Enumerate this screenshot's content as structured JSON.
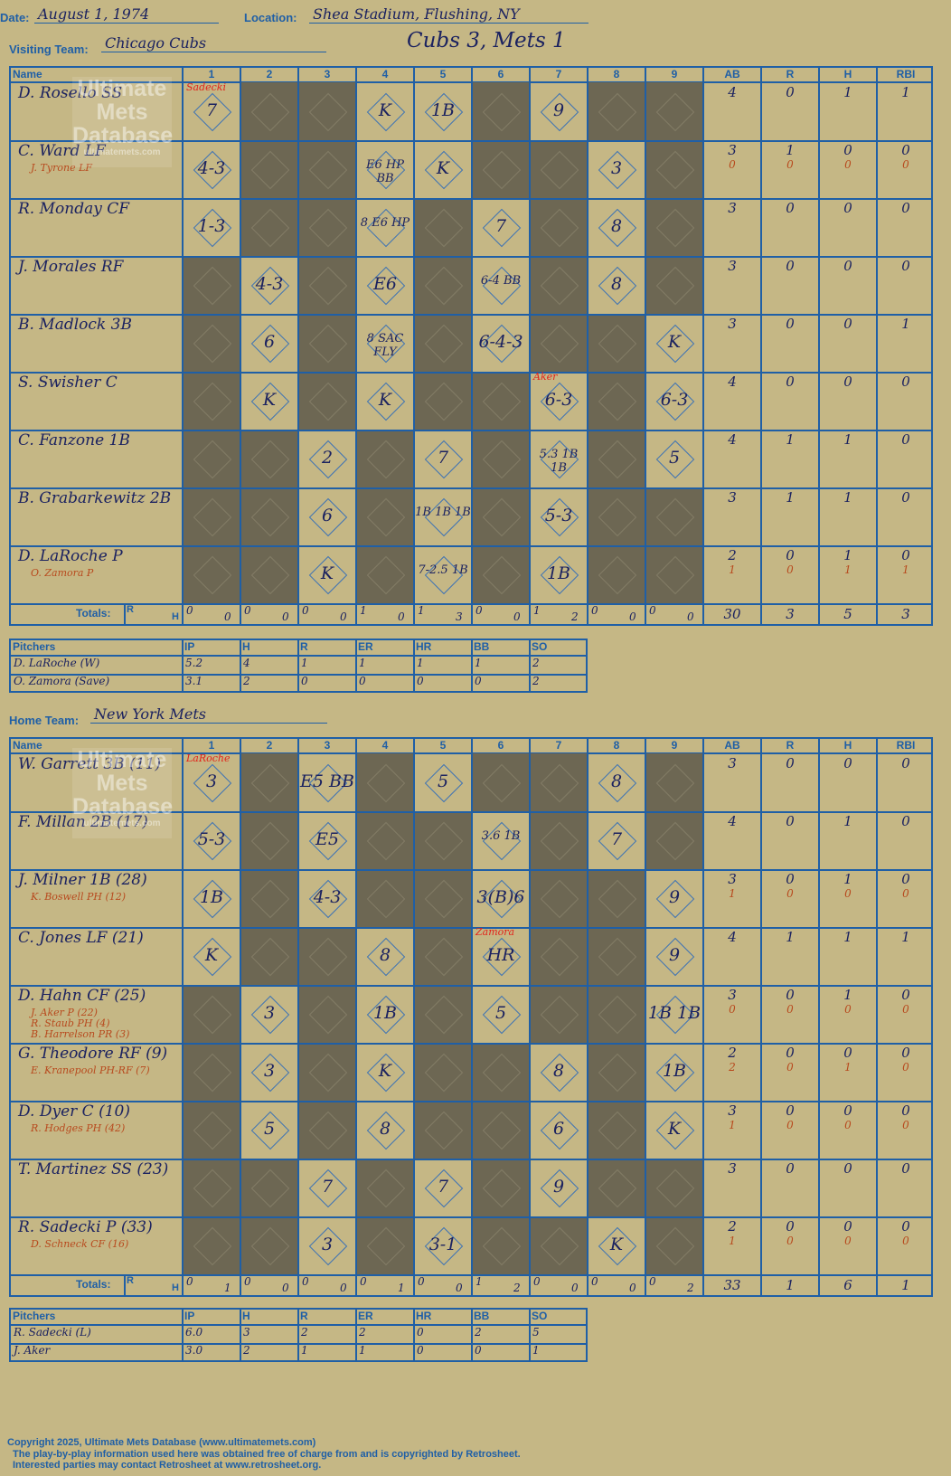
{
  "header": {
    "date_label": "Date:",
    "date": "August 1, 1974",
    "location_label": "Location:",
    "location": "Shea Stadium, Flushing, NY",
    "score_title": "Cubs 3, Mets 1"
  },
  "columns": {
    "name": "Name",
    "innings": [
      "1",
      "2",
      "3",
      "4",
      "5",
      "6",
      "7",
      "8",
      "9"
    ],
    "stats": [
      "AB",
      "R",
      "H",
      "RBI"
    ],
    "totals_label": "Totals:",
    "r_label": "R",
    "h_label": "H"
  },
  "watermark": {
    "line1": "Ultimate",
    "line2": "Mets",
    "line3": "Database",
    "url": "ultimatemets.com"
  },
  "visiting": {
    "team_label": "Visiting Team:",
    "team": "Chicago Cubs",
    "batters": [
      {
        "name": "D. Rosello SS",
        "subs": [],
        "stats": [
          "4",
          "0",
          "1",
          "1"
        ],
        "substats": [],
        "plays": [
          "7",
          "",
          "",
          "K",
          "1B",
          "",
          "9",
          "",
          ""
        ]
      },
      {
        "name": "C. Ward LF",
        "subs": [
          "J. Tyrone LF"
        ],
        "stats": [
          "3",
          "1",
          "0",
          "0"
        ],
        "substats": [
          "0",
          "0",
          "0",
          "0"
        ],
        "plays": [
          "4-3",
          "",
          "",
          "E6 HP BB",
          "K",
          "",
          "",
          "3",
          ""
        ]
      },
      {
        "name": "R. Monday CF",
        "subs": [],
        "stats": [
          "3",
          "0",
          "0",
          "0"
        ],
        "substats": [],
        "plays": [
          "1-3",
          "",
          "",
          "8 E6 HP",
          "",
          "7",
          "",
          "8",
          ""
        ]
      },
      {
        "name": "J. Morales RF",
        "subs": [],
        "stats": [
          "3",
          "0",
          "0",
          "0"
        ],
        "substats": [],
        "plays": [
          "",
          "4-3",
          "",
          "E6",
          "",
          "6-4 BB",
          "",
          "8",
          ""
        ]
      },
      {
        "name": "B. Madlock 3B",
        "subs": [],
        "stats": [
          "3",
          "0",
          "0",
          "1"
        ],
        "substats": [],
        "plays": [
          "",
          "6",
          "",
          "8 SAC FLY",
          "",
          "6-4-3",
          "",
          "",
          "K"
        ]
      },
      {
        "name": "S. Swisher C",
        "subs": [],
        "stats": [
          "4",
          "0",
          "0",
          "0"
        ],
        "substats": [],
        "plays": [
          "",
          "K",
          "",
          "K",
          "",
          "",
          "6-3",
          "",
          "6-3"
        ]
      },
      {
        "name": "C. Fanzone 1B",
        "subs": [],
        "stats": [
          "4",
          "1",
          "1",
          "0"
        ],
        "substats": [],
        "plays": [
          "",
          "",
          "2",
          "",
          "7",
          "",
          "5.3 1B 1B",
          "",
          "5"
        ]
      },
      {
        "name": "B. Grabarkewitz 2B",
        "subs": [],
        "stats": [
          "3",
          "1",
          "1",
          "0"
        ],
        "substats": [],
        "plays": [
          "",
          "",
          "6",
          "",
          "1B 1B 1B",
          "",
          "5-3",
          "",
          ""
        ]
      },
      {
        "name": "D. LaRoche P",
        "subs": [
          "O. Zamora P"
        ],
        "stats": [
          "2",
          "0",
          "1",
          "0"
        ],
        "substats": [
          "1",
          "0",
          "1",
          "1"
        ],
        "plays": [
          "",
          "",
          "K",
          "",
          "7-2.5 1B",
          "",
          "1B",
          "",
          ""
        ]
      }
    ],
    "pitch_notes": [
      {
        "row": 0,
        "col": 0,
        "text": "Sadecki"
      },
      {
        "row": 5,
        "col": 6,
        "text": "Aker"
      }
    ],
    "totals": {
      "innings": [
        [
          "0",
          "0"
        ],
        [
          "0",
          "0"
        ],
        [
          "0",
          "0"
        ],
        [
          "1",
          "0"
        ],
        [
          "1",
          "3"
        ],
        [
          "0",
          "0"
        ],
        [
          "1",
          "2"
        ],
        [
          "0",
          "0"
        ],
        [
          "0",
          "0"
        ]
      ],
      "stats": [
        "30",
        "3",
        "5",
        "3"
      ]
    },
    "pitchers_header": [
      "Pitchers",
      "IP",
      "H",
      "R",
      "ER",
      "HR",
      "BB",
      "SO"
    ],
    "pitchers": [
      [
        "D. LaRoche (W)",
        "5.2",
        "4",
        "1",
        "1",
        "1",
        "1",
        "2"
      ],
      [
        "O. Zamora (Save)",
        "3.1",
        "2",
        "0",
        "0",
        "0",
        "0",
        "2"
      ]
    ]
  },
  "home": {
    "team_label": "Home Team:",
    "team": "New York Mets",
    "batters": [
      {
        "name": "W. Garrett 3B (11)",
        "subs": [],
        "stats": [
          "3",
          "0",
          "0",
          "0"
        ],
        "substats": [],
        "plays": [
          "3",
          "",
          "E5 BB",
          "",
          "5",
          "",
          "",
          "8",
          ""
        ]
      },
      {
        "name": "F. Millan 2B (17)",
        "subs": [],
        "stats": [
          "4",
          "0",
          "1",
          "0"
        ],
        "substats": [],
        "plays": [
          "5-3",
          "",
          "E5",
          "",
          "",
          "3.6 1B",
          "",
          "7",
          ""
        ]
      },
      {
        "name": "J. Milner 1B (28)",
        "subs": [
          "K. Boswell PH (12)"
        ],
        "stats": [
          "3",
          "0",
          "1",
          "0"
        ],
        "substats": [
          "1",
          "0",
          "0",
          "0"
        ],
        "plays": [
          "1B",
          "",
          "4-3",
          "",
          "",
          "3(B)6",
          "",
          "",
          "9"
        ]
      },
      {
        "name": "C. Jones LF (21)",
        "subs": [],
        "stats": [
          "4",
          "1",
          "1",
          "1"
        ],
        "substats": [],
        "plays": [
          "K",
          "",
          "",
          "8",
          "",
          "HR",
          "",
          "",
          "9"
        ]
      },
      {
        "name": "D. Hahn CF (25)",
        "subs": [
          "J. Aker P (22)",
          "R. Staub PH (4)",
          "B. Harrelson PR (3)"
        ],
        "stats": [
          "3",
          "0",
          "1",
          "0"
        ],
        "substats": [
          "0",
          "0",
          "0",
          "0"
        ],
        "plays": [
          "",
          "3",
          "",
          "1B",
          "",
          "5",
          "",
          "",
          "1B 1B"
        ]
      },
      {
        "name": "G. Theodore RF (9)",
        "subs": [
          "E. Kranepool PH-RF (7)"
        ],
        "stats": [
          "2",
          "0",
          "0",
          "0"
        ],
        "substats": [
          "2",
          "0",
          "1",
          "0"
        ],
        "plays": [
          "",
          "3",
          "",
          "K",
          "",
          "",
          "8",
          "",
          "1B"
        ]
      },
      {
        "name": "D. Dyer C (10)",
        "subs": [
          "R. Hodges PH (42)"
        ],
        "stats": [
          "3",
          "0",
          "0",
          "0"
        ],
        "substats": [
          "1",
          "0",
          "0",
          "0"
        ],
        "plays": [
          "",
          "5",
          "",
          "8",
          "",
          "",
          "6",
          "",
          "K"
        ]
      },
      {
        "name": "T. Martinez SS (23)",
        "subs": [],
        "stats": [
          "3",
          "0",
          "0",
          "0"
        ],
        "substats": [],
        "plays": [
          "",
          "",
          "7",
          "",
          "7",
          "",
          "9",
          "",
          ""
        ]
      },
      {
        "name": "R. Sadecki P (33)",
        "subs": [
          "D. Schneck CF (16)"
        ],
        "stats": [
          "2",
          "0",
          "0",
          "0"
        ],
        "substats": [
          "1",
          "0",
          "0",
          "0"
        ],
        "plays": [
          "",
          "",
          "3",
          "",
          "3-1",
          "",
          "",
          "K",
          ""
        ]
      }
    ],
    "pitch_notes": [
      {
        "row": 0,
        "col": 0,
        "text": "LaRoche"
      },
      {
        "row": 3,
        "col": 5,
        "text": "Zamora"
      }
    ],
    "totals": {
      "innings": [
        [
          "0",
          "1"
        ],
        [
          "0",
          "0"
        ],
        [
          "0",
          "0"
        ],
        [
          "0",
          "1"
        ],
        [
          "0",
          "0"
        ],
        [
          "1",
          "2"
        ],
        [
          "0",
          "0"
        ],
        [
          "0",
          "0"
        ],
        [
          "0",
          "2"
        ]
      ],
      "stats": [
        "33",
        "1",
        "6",
        "1"
      ]
    },
    "pitchers_header": [
      "Pitchers",
      "IP",
      "H",
      "R",
      "ER",
      "HR",
      "BB",
      "SO"
    ],
    "pitchers": [
      [
        "R. Sadecki (L)",
        "6.0",
        "3",
        "2",
        "2",
        "0",
        "2",
        "5"
      ],
      [
        "J. Aker",
        "3.0",
        "2",
        "1",
        "1",
        "0",
        "0",
        "1"
      ]
    ]
  },
  "footer": {
    "copyright": "Copyright 2025, Ultimate Mets Database (www.ultimatemets.com)",
    "line2": "The play-by-play information used here was obtained free of charge from and is copyrighted by Retrosheet.",
    "line3": "Interested parties may contact Retrosheet at www.retrosheet.org."
  }
}
